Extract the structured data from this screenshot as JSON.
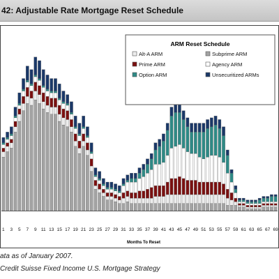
{
  "header": {
    "title": "42: Adjustable Rate Mortgage Reset Schedule"
  },
  "notes": {
    "data_as_of": "ata as of January 2007.",
    "source": "Credit Suisse Fixed Income U.S. Mortgage Strategy"
  },
  "chart_data": {
    "type": "bar",
    "stacked": true,
    "title": "ARM Reset Schedule",
    "xlabel": "Months To Reset",
    "ylabel": "",
    "ylim": [
      0,
      100
    ],
    "grid": false,
    "legend_position": "top-right",
    "x_tick_labels": [
      "1",
      "3",
      "5",
      "7",
      "9",
      "11",
      "13",
      "15",
      "17",
      "19",
      "21",
      "23",
      "25",
      "27",
      "29",
      "31",
      "33",
      "35",
      "37",
      "39",
      "41",
      "43",
      "45",
      "47",
      "49",
      "51",
      "53",
      "55",
      "57",
      "59",
      "61",
      "63",
      "65",
      "67",
      "69"
    ],
    "categories": [
      1,
      2,
      3,
      4,
      5,
      6,
      7,
      8,
      9,
      10,
      11,
      12,
      13,
      14,
      15,
      16,
      17,
      18,
      19,
      20,
      21,
      22,
      23,
      24,
      25,
      26,
      27,
      28,
      29,
      30,
      31,
      32,
      33,
      34,
      35,
      36,
      37,
      38,
      39,
      40,
      41,
      42,
      43,
      44,
      45,
      46,
      47,
      48,
      49,
      50,
      51,
      52,
      53,
      54,
      55,
      56,
      57,
      58,
      59,
      60,
      61,
      62,
      63,
      64,
      65,
      66,
      67,
      68,
      69
    ],
    "series": [
      {
        "name": "Subprime ARM",
        "color": "#a3a3a3",
        "values": [
          30,
          33,
          35,
          44,
          50,
          56,
          60,
          59,
          62,
          60,
          57,
          55,
          54,
          54,
          50,
          48,
          47,
          44,
          36,
          32,
          36,
          31,
          22,
          12,
          10,
          8,
          6,
          6,
          5,
          4,
          4,
          5,
          4,
          4,
          4,
          4,
          4,
          4,
          4,
          4,
          4,
          4,
          4,
          4,
          4,
          4,
          4,
          4,
          4,
          4,
          4,
          4,
          4,
          4,
          4,
          4,
          3,
          3,
          3,
          2,
          2,
          1,
          1,
          1,
          1,
          2,
          2,
          2,
          2
        ]
      },
      {
        "name": "Alt-A ARM",
        "color": "#ececec",
        "values": [
          3,
          3,
          3,
          3,
          4,
          4,
          4,
          4,
          5,
          5,
          4,
          4,
          4,
          4,
          4,
          4,
          4,
          3,
          3,
          3,
          3,
          3,
          3,
          2,
          2,
          2,
          2,
          2,
          2,
          2,
          3,
          3,
          3,
          3,
          3,
          3,
          3,
          3,
          4,
          4,
          4,
          5,
          5,
          5,
          5,
          5,
          5,
          5,
          5,
          5,
          5,
          5,
          5,
          5,
          5,
          5,
          4,
          3,
          2,
          1,
          1,
          1,
          1,
          1,
          1,
          1,
          1,
          1,
          1
        ]
      },
      {
        "name": "Prime ARM",
        "color": "#7a1010",
        "values": [
          2,
          2,
          2,
          3,
          3,
          4,
          5,
          4,
          5,
          5,
          5,
          5,
          5,
          5,
          5,
          5,
          5,
          4,
          4,
          4,
          4,
          4,
          4,
          3,
          3,
          2,
          2,
          2,
          2,
          2,
          3,
          3,
          3,
          3,
          4,
          4,
          5,
          6,
          6,
          6,
          6,
          7,
          9,
          9,
          10,
          9,
          8,
          8,
          8,
          7,
          7,
          7,
          7,
          7,
          7,
          6,
          5,
          4,
          2,
          1,
          1,
          1,
          1,
          1,
          1,
          1,
          1,
          1,
          1
        ]
      },
      {
        "name": "Agency ARM",
        "color": "#ffffff",
        "values": [
          2,
          2,
          2,
          2,
          2,
          3,
          3,
          3,
          3,
          3,
          3,
          3,
          3,
          3,
          3,
          3,
          3,
          3,
          3,
          3,
          3,
          3,
          3,
          2,
          2,
          2,
          2,
          2,
          2,
          2,
          4,
          5,
          6,
          6,
          7,
          8,
          9,
          10,
          12,
          12,
          13,
          15,
          17,
          18,
          18,
          17,
          16,
          15,
          15,
          14,
          13,
          14,
          15,
          15,
          14,
          12,
          9,
          6,
          3,
          1,
          1,
          1,
          1,
          1,
          1,
          1,
          1,
          1,
          1
        ]
      },
      {
        "name": "Option ARM",
        "color": "#2e8a86",
        "values": [
          1,
          1,
          1,
          1,
          1,
          1,
          1,
          1,
          1,
          1,
          1,
          1,
          1,
          1,
          1,
          1,
          1,
          1,
          1,
          1,
          1,
          1,
          1,
          1,
          1,
          1,
          1,
          1,
          1,
          1,
          1,
          1,
          2,
          2,
          3,
          4,
          5,
          6,
          8,
          10,
          12,
          14,
          18,
          19,
          18,
          16,
          14,
          12,
          12,
          14,
          15,
          16,
          16,
          17,
          16,
          15,
          10,
          5,
          2,
          1,
          1,
          1,
          1,
          1,
          2,
          2,
          2,
          3,
          3
        ]
      },
      {
        "name": "Unsecuritized ARMs",
        "color": "#1a3868",
        "values": [
          3,
          3,
          4,
          5,
          6,
          6,
          8,
          8,
          10,
          10,
          9,
          8,
          7,
          7,
          8,
          6,
          5,
          6,
          6,
          6,
          6,
          5,
          5,
          4,
          4,
          3,
          3,
          3,
          3,
          3,
          3,
          3,
          3,
          3,
          3,
          3,
          3,
          3,
          4,
          4,
          4,
          4,
          5,
          5,
          5,
          5,
          5,
          5,
          5,
          5,
          5,
          5,
          5,
          5,
          5,
          5,
          3,
          2,
          2,
          1,
          1,
          1,
          1,
          1,
          1,
          1,
          1,
          1,
          1
        ]
      }
    ],
    "legend_order": [
      "Alt-A ARM",
      "Subprime ARM",
      "Prime ARM",
      "Agency ARM",
      "Option ARM",
      "Unsecuritized ARMs"
    ]
  }
}
